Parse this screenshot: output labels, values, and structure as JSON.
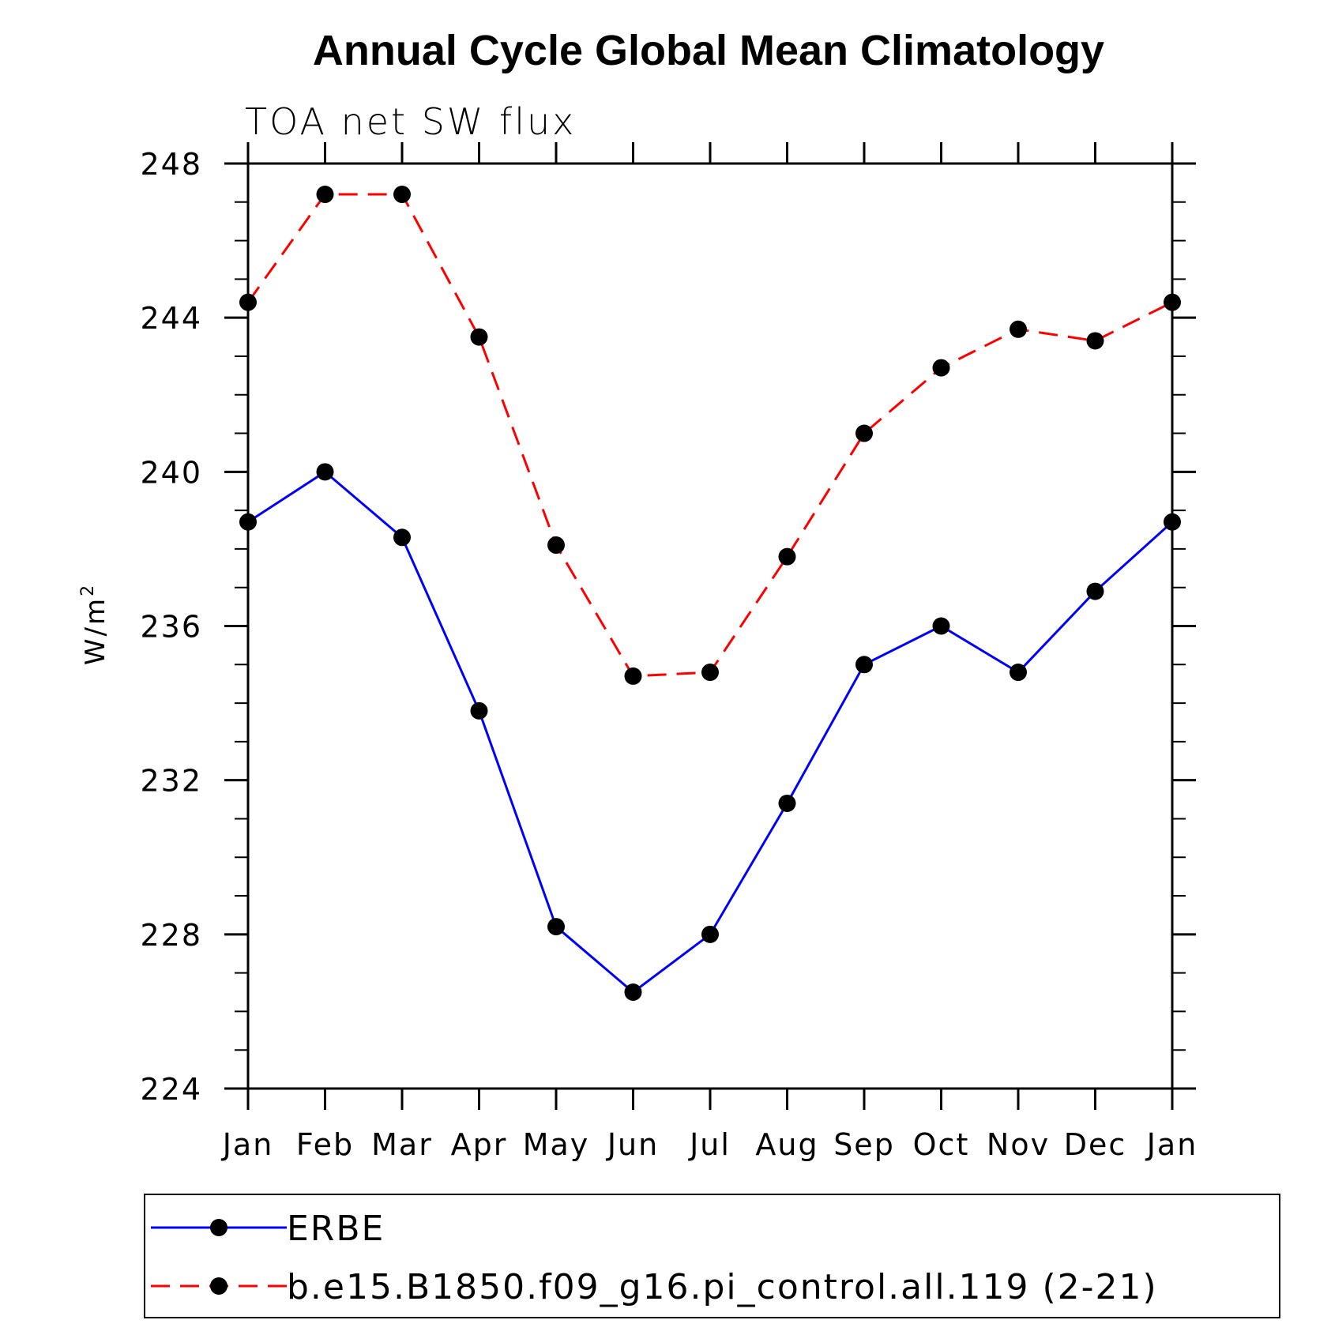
{
  "chart_data": {
    "type": "line",
    "title": "Annual Cycle Global Mean Climatology",
    "subtitle": "TOA net SW flux",
    "xlabel": "",
    "ylabel": "W/m",
    "ylabel_superscript": "2",
    "categories": [
      "Jan",
      "Feb",
      "Mar",
      "Apr",
      "May",
      "Jun",
      "Jul",
      "Aug",
      "Sep",
      "Oct",
      "Nov",
      "Dec",
      "Jan"
    ],
    "ylim": [
      224,
      248
    ],
    "yticks": [
      "224",
      "228",
      "232",
      "236",
      "240",
      "244",
      "248"
    ],
    "grid": false,
    "legend_position": "bottom",
    "series": [
      {
        "name": "ERBE",
        "color": "#0000ff",
        "dash": "solid",
        "marker": "filled-circle",
        "values": [
          238.7,
          240.0,
          238.3,
          233.8,
          228.2,
          226.5,
          228.0,
          231.4,
          235.0,
          236.0,
          234.8,
          236.9,
          238.7
        ]
      },
      {
        "name": "b.e15.B1850.f09_g16.pi_control.all.119 (2-21)",
        "color": "#ff0000",
        "dash": "dashed",
        "marker": "filled-circle",
        "values": [
          244.4,
          247.2,
          247.2,
          243.5,
          238.1,
          234.7,
          234.8,
          237.8,
          241.0,
          242.7,
          243.7,
          243.4,
          244.4
        ]
      }
    ]
  }
}
